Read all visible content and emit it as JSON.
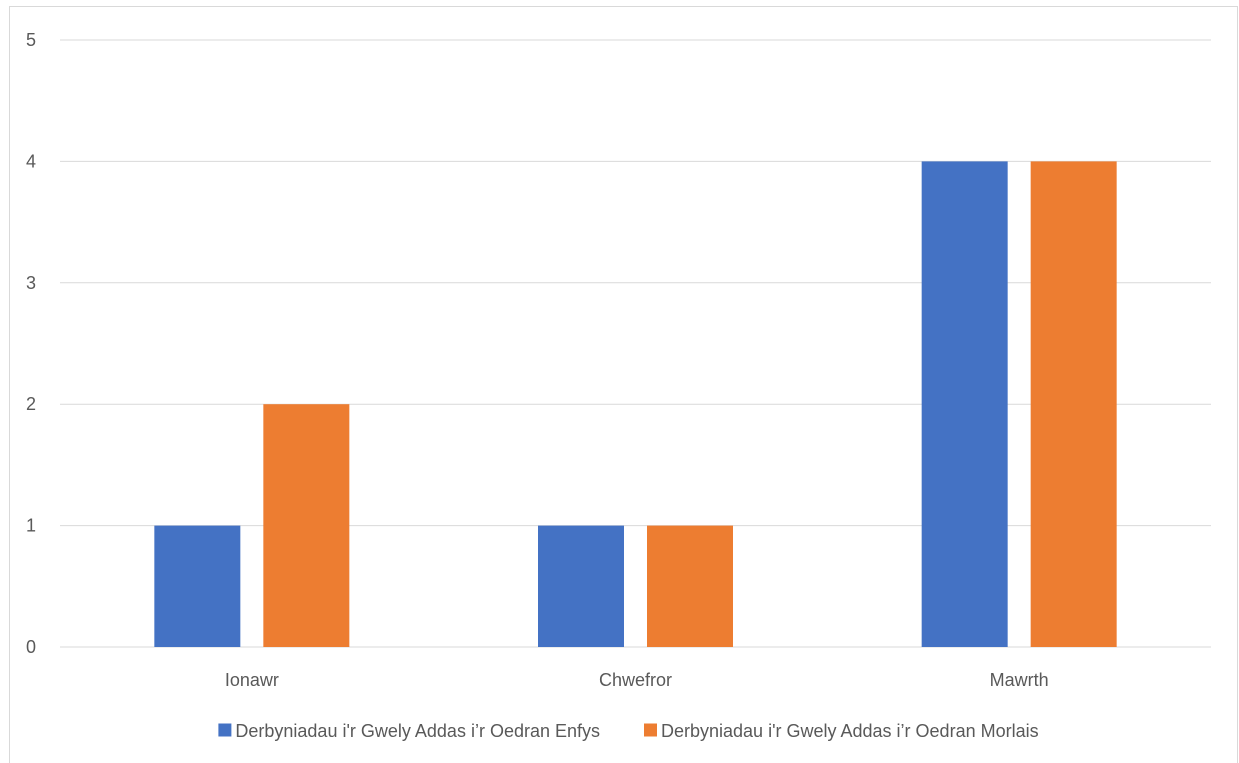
{
  "chart_data": {
    "type": "bar",
    "categories": [
      "Ionawr",
      "Chwefror",
      "Mawrth"
    ],
    "series": [
      {
        "name": "Derbyniadau i'r Gwely Addas i’r Oedran Enfys",
        "values": [
          1,
          1,
          4
        ],
        "color": "#4472c4"
      },
      {
        "name": "Derbyniadau i'r Gwely Addas i’r Oedran Morlais",
        "values": [
          2,
          1,
          4
        ],
        "color": "#ed7d31"
      }
    ],
    "yticks": [
      0,
      1,
      2,
      3,
      4,
      5
    ],
    "ylim": [
      0,
      5
    ],
    "grid": true,
    "legend_position": "bottom"
  }
}
